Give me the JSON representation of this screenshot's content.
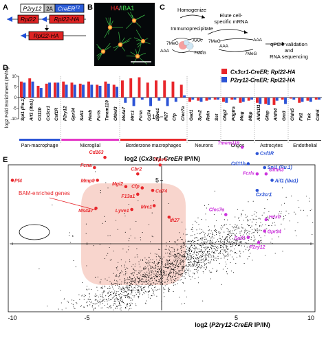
{
  "panelA": {
    "letter": "A",
    "line1": {
      "promoter": "P2ry12",
      "link": "2A",
      "gene": "CreER",
      "sup": "T2"
    },
    "line2": {
      "left": "Rpl22",
      "right": "Rpl22-HA"
    },
    "line3": {
      "gene": "Rpl22-HA"
    }
  },
  "panelB": {
    "letter": "B",
    "label_ha": "HA",
    "label_sep": "/",
    "label_iba1": "IBA1"
  },
  "panelC": {
    "letter": "C",
    "homogenize": "Homogenize",
    "immunoprecipitate": "Immunoprecipitate",
    "elute": "Elute cell-",
    "elute2": "specific mRNA",
    "qpcr1": "qPCR validation",
    "qpcr2": "and",
    "qpcr3": "RNA sequencing",
    "aaa": "AAA",
    "cap": "7MeG"
  },
  "panelD": {
    "letter": "D",
    "ylabel": "log2 Fold Enrichment (IP/IN)",
    "legend": [
      {
        "name": "Cx3cr1-CreER; Rpl22-HA",
        "color": "#e8262b"
      },
      {
        "name": "P2ry12-CreER; Rpl22-HA",
        "color": "#2c54d6"
      }
    ],
    "groups": [
      {
        "name": "Pan-macrophage",
        "color": "#2c54d6"
      },
      {
        "name": "Microglial",
        "color": "#e436c6"
      },
      {
        "name": "Borderzone macrophages",
        "color": "#e8262b"
      },
      {
        "name": "Neurons",
        "color": "#111111"
      },
      {
        "name": "Oligos",
        "color": "#111111"
      },
      {
        "name": "Astrocytes",
        "color": "#111111"
      },
      {
        "name": "Endothelial",
        "color": "#111111"
      }
    ]
  },
  "panelE": {
    "letter": "E",
    "bam_label": "BAM-enriched genes",
    "colors": {
      "red": "#e8262b",
      "blue": "#2c54d6",
      "magenta": "#cc33dd"
    },
    "red_labels": [
      "Pf4",
      "Cd163",
      "Fcna",
      "Mmp9",
      "Ms4a7",
      "Mgl2",
      "Cbr2",
      "Cfp",
      "F13a1",
      "Lyve1",
      "Mrc1",
      "Trpv4",
      "Cd74",
      "Ifi27"
    ],
    "blue_labels": [
      "Csf1R",
      "Cd11b",
      "Spi1 (Pu.1)",
      "Cx3cr1",
      "Aif1 (Iba1)"
    ],
    "magenta_labels": [
      "Tmem119",
      "Fcrls",
      "Olfml3",
      "Hexb",
      "Gpr34",
      "Sall1",
      "P2ry12",
      "Clec7a"
    ]
  },
  "chart_data": [
    {
      "type": "bar",
      "title": "",
      "xlabel": "",
      "ylabel": "log2 Fold Enrichment (IP/IN)",
      "ylim": [
        -10,
        10
      ],
      "yticks": [
        -10,
        -5,
        0,
        5,
        10
      ],
      "categories": [
        "Spi1 (Pu.1)",
        "Aif1 (Iba1)",
        "Cd11b",
        "Cx3cr1",
        "Csf1R",
        "P2ry12",
        "Gpr34",
        "Sall1",
        "Hexb",
        "Fcrls",
        "Tmem119",
        "Olfml3",
        "Ms4a7",
        "Mrc1",
        "Fcna",
        "Cd74",
        "Lyve1",
        "Ifi27",
        "Cfp",
        "Clec7a",
        "Gad1",
        "Syn2",
        "Reln",
        "Sst",
        "Olig2",
        "Pdgfra",
        "Mog",
        "Mbp",
        "Aldh1l1",
        "Gfap",
        "Aldh4",
        "Gm3",
        "Cldn5",
        "Flt1",
        "Tek",
        "Cdh5"
      ],
      "series": [
        {
          "name": "Cx3cr1-CreER; Rpl22-HA",
          "color": "#e8262b",
          "values": [
            7.5,
            9,
            5.5,
            6.5,
            7,
            7.5,
            7,
            6.5,
            7.5,
            6,
            7.5,
            6,
            8,
            9,
            9.5,
            7,
            8,
            8,
            7.5,
            6,
            -2,
            -1.5,
            -1.5,
            -1,
            -2,
            -1,
            -2.5,
            -1.5,
            -2.5,
            -3,
            -3.5,
            -1,
            -0.5,
            -2.5,
            -1.5,
            -1
          ]
        },
        {
          "name": "P2ry12-CreER; Rpl22-HA",
          "color": "#2c54d6",
          "values": [
            7,
            7.5,
            4.5,
            7,
            7,
            6,
            6,
            6,
            6,
            5.5,
            6.5,
            5,
            -2.5,
            -4,
            -1,
            -4,
            -1.5,
            -4,
            -2,
            1,
            -1,
            -2,
            -1,
            -1,
            -2.5,
            -1,
            -2,
            -1,
            -3,
            -3.5,
            -1.5,
            -3,
            -1,
            -2,
            -2,
            -1
          ]
        }
      ],
      "group_spans": [
        [
          "Pan-macrophage",
          0,
          4
        ],
        [
          "Microglial",
          5,
          11
        ],
        [
          "Borderzone macrophages",
          12,
          19
        ],
        [
          "Neurons",
          20,
          23
        ],
        [
          "Oligos",
          24,
          27
        ],
        [
          "Astrocytes",
          28,
          31
        ],
        [
          "Endothelial",
          32,
          35
        ]
      ]
    },
    {
      "type": "scatter",
      "title": "",
      "xlabel": "log2 (P2ry12-CreER IP/IN)",
      "ylabel": "log2 (Cx3cr1-CreER IP/IN)",
      "xlim": [
        -11,
        11
      ],
      "ylim": [
        -6,
        14
      ],
      "xticks": [
        -10,
        -5,
        5,
        10
      ],
      "yticks": [
        5,
        10
      ],
      "series": [
        {
          "name": "",
          "color": "#e8262b",
          "points": [
            {
              "label": "Pf4",
              "x": -10,
              "y": 5.0
            },
            {
              "label": "Cd163",
              "x": -3.8,
              "y": 6.8
            },
            {
              "label": "Fcna",
              "x": -4.5,
              "y": 6.0
            },
            {
              "label": "Mmp9",
              "x": -4.3,
              "y": 5.0
            },
            {
              "label": "Ms4a7",
              "x": -4.4,
              "y": 2.8
            },
            {
              "label": "Mgl2",
              "x": -2.4,
              "y": 4.5
            },
            {
              "label": "Cbr2",
              "x": -1.6,
              "y": 5.5
            },
            {
              "label": "Cfp",
              "x": -1.3,
              "y": 4.4
            },
            {
              "label": "F13a1",
              "x": -1.6,
              "y": 3.9
            },
            {
              "label": "Lyve1",
              "x": -2.0,
              "y": 2.7
            },
            {
              "label": "Mrc1",
              "x": -0.5,
              "y": 3.0
            },
            {
              "label": "Trpv4",
              "x": -0.1,
              "y": 6.2
            },
            {
              "label": "Cd74",
              "x": -0.6,
              "y": 4.2
            },
            {
              "label": "Ifi27",
              "x": 0.5,
              "y": 2.1
            }
          ]
        },
        {
          "name": "",
          "color": "#2c54d6",
          "points": [
            {
              "label": "Csf1R",
              "x": 6.4,
              "y": 7.1
            },
            {
              "label": "Cd11b",
              "x": 5.8,
              "y": 6.3
            },
            {
              "label": "Spi1 (Pu.1)",
              "x": 6.9,
              "y": 6.0
            },
            {
              "label": "Cx3cr1",
              "x": 6.4,
              "y": 4.2
            },
            {
              "label": "Aif1 (Iba1)",
              "x": 7.4,
              "y": 5.0
            }
          ]
        },
        {
          "name": "",
          "color": "#cc33dd",
          "points": [
            {
              "label": "Tmem119",
              "x": 5.4,
              "y": 7.6
            },
            {
              "label": "Fcrls",
              "x": 6.4,
              "y": 5.5
            },
            {
              "label": "Olfml3",
              "x": 7.0,
              "y": 5.5
            },
            {
              "label": "Hexb",
              "x": 7.0,
              "y": 1.9
            },
            {
              "label": "Gpr34",
              "x": 6.9,
              "y": 1.0
            },
            {
              "label": "Sall1",
              "x": 5.8,
              "y": 0.5
            },
            {
              "label": "P2ry12",
              "x": 6.5,
              "y": 0.1
            },
            {
              "label": "Clec7a",
              "x": 4.3,
              "y": 2.3
            }
          ]
        }
      ]
    }
  ]
}
